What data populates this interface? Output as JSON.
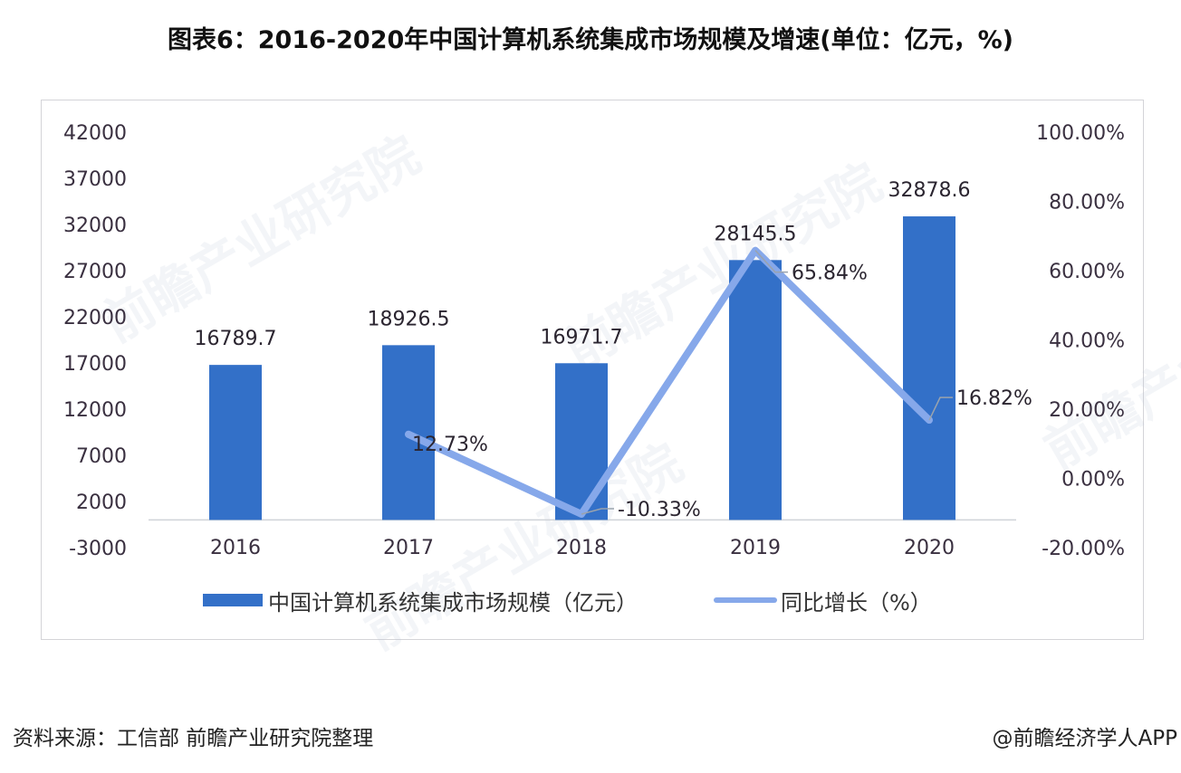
{
  "title": "图表6：2016-2020年中国计算机系统集成市场规模及增速(单位：亿元，%)",
  "colors": {
    "bar": "#3370c8",
    "line": "#86a8ea",
    "text": "#2b2530",
    "frame": "#d4d4d8"
  },
  "legend": {
    "bar_label": "中国计算机系统集成市场规模（亿元）",
    "line_label": "同比增长（%）"
  },
  "footer": {
    "source": "资料来源：工信部 前瞻产业研究院整理",
    "credit": "@前瞻经济学人APP"
  },
  "watermark": "前瞻产业研究院",
  "chart_data": {
    "type": "bar",
    "title": "图表6：2016-2020年中国计算机系统集成市场规模及增速(单位：亿元，%)",
    "categories": [
      "2016",
      "2017",
      "2018",
      "2019",
      "2020"
    ],
    "series": [
      {
        "name": "中国计算机系统集成市场规模（亿元）",
        "type": "bar",
        "axis": "left",
        "values": [
          16789.7,
          18926.5,
          16971.7,
          28145.5,
          32878.6
        ],
        "labels": [
          "16789.7",
          "18926.5",
          "16971.7",
          "28145.5",
          "32878.6"
        ]
      },
      {
        "name": "同比增长（%）",
        "type": "line",
        "axis": "right",
        "values": [
          null,
          12.73,
          -10.33,
          65.84,
          16.82
        ],
        "labels": [
          "",
          "12.73%",
          "-10.33%",
          "65.84%",
          "16.82%"
        ]
      }
    ],
    "left_axis": {
      "ticks": [
        "42000",
        "37000",
        "32000",
        "27000",
        "22000",
        "17000",
        "12000",
        "7000",
        "2000",
        "-3000"
      ],
      "ylim": [
        -3000,
        42000
      ]
    },
    "right_axis": {
      "ticks": [
        "100.00%",
        "80.00%",
        "60.00%",
        "40.00%",
        "20.00%",
        "0.00%",
        "-20.00%"
      ],
      "ylim": [
        -20,
        100
      ]
    },
    "xlabel": "",
    "ylabel": "",
    "grid": false,
    "legend_position": "bottom"
  }
}
